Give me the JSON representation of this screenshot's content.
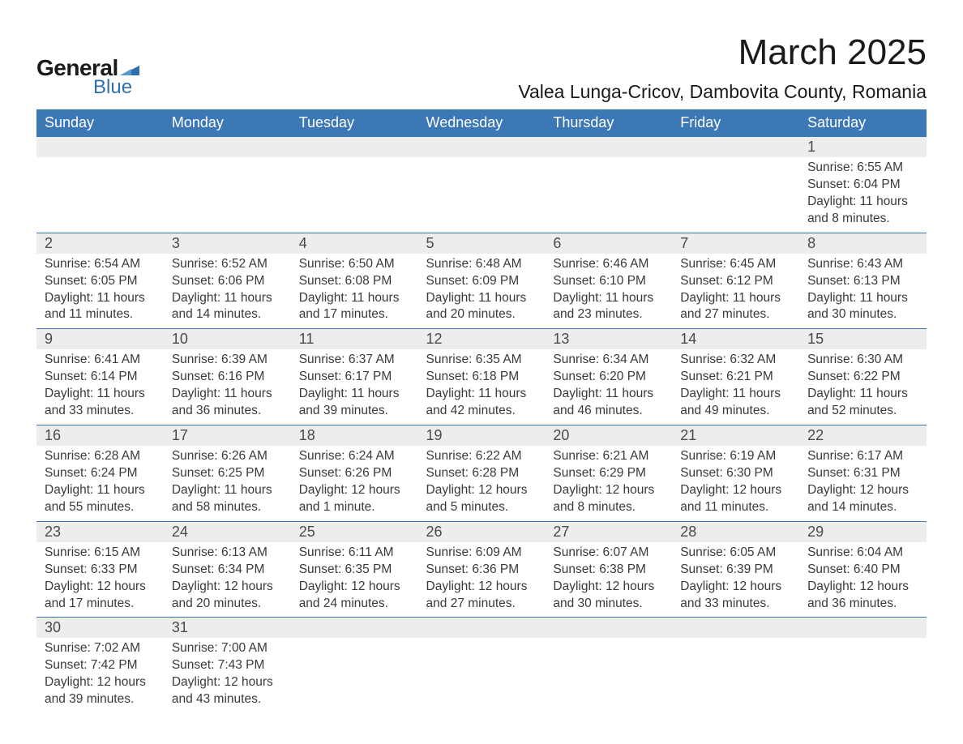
{
  "logo": {
    "text_general": "General",
    "text_blue": "Blue",
    "mark_color": "#2f6fb0"
  },
  "title": "March 2025",
  "location": "Valea Lunga-Cricov, Dambovita County, Romania",
  "colors": {
    "header_bg": "#3b78b5",
    "header_text": "#ffffff",
    "daynum_bg": "#ededed",
    "rule": "#3b78b5",
    "text": "#333333"
  },
  "weekdays": [
    "Sunday",
    "Monday",
    "Tuesday",
    "Wednesday",
    "Thursday",
    "Friday",
    "Saturday"
  ],
  "weeks": [
    [
      null,
      null,
      null,
      null,
      null,
      null,
      {
        "n": "1",
        "sunrise": "6:55 AM",
        "sunset": "6:04 PM",
        "daylight": "11 hours and 8 minutes."
      }
    ],
    [
      {
        "n": "2",
        "sunrise": "6:54 AM",
        "sunset": "6:05 PM",
        "daylight": "11 hours and 11 minutes."
      },
      {
        "n": "3",
        "sunrise": "6:52 AM",
        "sunset": "6:06 PM",
        "daylight": "11 hours and 14 minutes."
      },
      {
        "n": "4",
        "sunrise": "6:50 AM",
        "sunset": "6:08 PM",
        "daylight": "11 hours and 17 minutes."
      },
      {
        "n": "5",
        "sunrise": "6:48 AM",
        "sunset": "6:09 PM",
        "daylight": "11 hours and 20 minutes."
      },
      {
        "n": "6",
        "sunrise": "6:46 AM",
        "sunset": "6:10 PM",
        "daylight": "11 hours and 23 minutes."
      },
      {
        "n": "7",
        "sunrise": "6:45 AM",
        "sunset": "6:12 PM",
        "daylight": "11 hours and 27 minutes."
      },
      {
        "n": "8",
        "sunrise": "6:43 AM",
        "sunset": "6:13 PM",
        "daylight": "11 hours and 30 minutes."
      }
    ],
    [
      {
        "n": "9",
        "sunrise": "6:41 AM",
        "sunset": "6:14 PM",
        "daylight": "11 hours and 33 minutes."
      },
      {
        "n": "10",
        "sunrise": "6:39 AM",
        "sunset": "6:16 PM",
        "daylight": "11 hours and 36 minutes."
      },
      {
        "n": "11",
        "sunrise": "6:37 AM",
        "sunset": "6:17 PM",
        "daylight": "11 hours and 39 minutes."
      },
      {
        "n": "12",
        "sunrise": "6:35 AM",
        "sunset": "6:18 PM",
        "daylight": "11 hours and 42 minutes."
      },
      {
        "n": "13",
        "sunrise": "6:34 AM",
        "sunset": "6:20 PM",
        "daylight": "11 hours and 46 minutes."
      },
      {
        "n": "14",
        "sunrise": "6:32 AM",
        "sunset": "6:21 PM",
        "daylight": "11 hours and 49 minutes."
      },
      {
        "n": "15",
        "sunrise": "6:30 AM",
        "sunset": "6:22 PM",
        "daylight": "11 hours and 52 minutes."
      }
    ],
    [
      {
        "n": "16",
        "sunrise": "6:28 AM",
        "sunset": "6:24 PM",
        "daylight": "11 hours and 55 minutes."
      },
      {
        "n": "17",
        "sunrise": "6:26 AM",
        "sunset": "6:25 PM",
        "daylight": "11 hours and 58 minutes."
      },
      {
        "n": "18",
        "sunrise": "6:24 AM",
        "sunset": "6:26 PM",
        "daylight": "12 hours and 1 minute."
      },
      {
        "n": "19",
        "sunrise": "6:22 AM",
        "sunset": "6:28 PM",
        "daylight": "12 hours and 5 minutes."
      },
      {
        "n": "20",
        "sunrise": "6:21 AM",
        "sunset": "6:29 PM",
        "daylight": "12 hours and 8 minutes."
      },
      {
        "n": "21",
        "sunrise": "6:19 AM",
        "sunset": "6:30 PM",
        "daylight": "12 hours and 11 minutes."
      },
      {
        "n": "22",
        "sunrise": "6:17 AM",
        "sunset": "6:31 PM",
        "daylight": "12 hours and 14 minutes."
      }
    ],
    [
      {
        "n": "23",
        "sunrise": "6:15 AM",
        "sunset": "6:33 PM",
        "daylight": "12 hours and 17 minutes."
      },
      {
        "n": "24",
        "sunrise": "6:13 AM",
        "sunset": "6:34 PM",
        "daylight": "12 hours and 20 minutes."
      },
      {
        "n": "25",
        "sunrise": "6:11 AM",
        "sunset": "6:35 PM",
        "daylight": "12 hours and 24 minutes."
      },
      {
        "n": "26",
        "sunrise": "6:09 AM",
        "sunset": "6:36 PM",
        "daylight": "12 hours and 27 minutes."
      },
      {
        "n": "27",
        "sunrise": "6:07 AM",
        "sunset": "6:38 PM",
        "daylight": "12 hours and 30 minutes."
      },
      {
        "n": "28",
        "sunrise": "6:05 AM",
        "sunset": "6:39 PM",
        "daylight": "12 hours and 33 minutes."
      },
      {
        "n": "29",
        "sunrise": "6:04 AM",
        "sunset": "6:40 PM",
        "daylight": "12 hours and 36 minutes."
      }
    ],
    [
      {
        "n": "30",
        "sunrise": "7:02 AM",
        "sunset": "7:42 PM",
        "daylight": "12 hours and 39 minutes."
      },
      {
        "n": "31",
        "sunrise": "7:00 AM",
        "sunset": "7:43 PM",
        "daylight": "12 hours and 43 minutes."
      },
      null,
      null,
      null,
      null,
      null
    ]
  ],
  "labels": {
    "sunrise_prefix": "Sunrise: ",
    "sunset_prefix": "Sunset: ",
    "daylight_prefix": "Daylight: "
  }
}
